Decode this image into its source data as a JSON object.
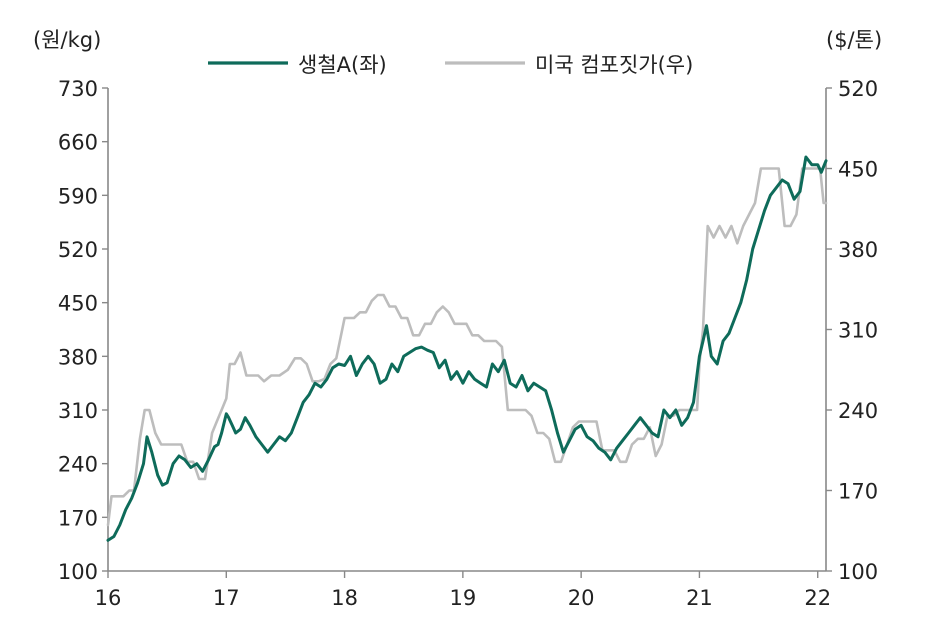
{
  "chart_data": {
    "type": "line",
    "left_axis_label": "(원/kg)",
    "right_axis_label": "($/톤)",
    "x_ticks": [
      "16",
      "17",
      "18",
      "19",
      "20",
      "21",
      "22"
    ],
    "x_range": [
      2016.0,
      2022.07
    ],
    "left_ticks": [
      "100",
      "170",
      "240",
      "310",
      "380",
      "450",
      "520",
      "590",
      "660",
      "730"
    ],
    "left_range": [
      100,
      730
    ],
    "right_ticks": [
      "100",
      "170",
      "240",
      "310",
      "380",
      "450",
      "520"
    ],
    "right_range": [
      100,
      520
    ],
    "legend": {
      "placement": "top-center"
    },
    "series": [
      {
        "name": "생철A(좌)",
        "axis": "left",
        "color": "#0e6b5a",
        "x": [
          2016.0,
          2016.05,
          2016.1,
          2016.15,
          2016.2,
          2016.25,
          2016.3,
          2016.33,
          2016.37,
          2016.42,
          2016.46,
          2016.5,
          2016.55,
          2016.6,
          2016.65,
          2016.7,
          2016.75,
          2016.8,
          2016.85,
          2016.9,
          2016.93,
          2016.96,
          2017.0,
          2017.02,
          2017.05,
          2017.08,
          2017.12,
          2017.16,
          2017.2,
          2017.25,
          2017.3,
          2017.35,
          2017.4,
          2017.45,
          2017.5,
          2017.55,
          2017.6,
          2017.65,
          2017.7,
          2017.75,
          2017.8,
          2017.85,
          2017.9,
          2017.95,
          2018.0,
          2018.05,
          2018.1,
          2018.15,
          2018.2,
          2018.25,
          2018.3,
          2018.35,
          2018.4,
          2018.45,
          2018.5,
          2018.55,
          2018.6,
          2018.65,
          2018.7,
          2018.75,
          2018.8,
          2018.85,
          2018.9,
          2018.95,
          2019.0,
          2019.05,
          2019.1,
          2019.15,
          2019.2,
          2019.25,
          2019.3,
          2019.35,
          2019.4,
          2019.45,
          2019.5,
          2019.55,
          2019.6,
          2019.65,
          2019.7,
          2019.75,
          2019.8,
          2019.85,
          2019.9,
          2019.95,
          2020.0,
          2020.05,
          2020.1,
          2020.15,
          2020.2,
          2020.25,
          2020.3,
          2020.35,
          2020.4,
          2020.45,
          2020.5,
          2020.55,
          2020.6,
          2020.65,
          2020.7,
          2020.75,
          2020.8,
          2020.85,
          2020.9,
          2020.95,
          2021.0,
          2021.03,
          2021.06,
          2021.1,
          2021.15,
          2021.2,
          2021.25,
          2021.3,
          2021.35,
          2021.4,
          2021.45,
          2021.5,
          2021.55,
          2021.6,
          2021.65,
          2021.7,
          2021.75,
          2021.8,
          2021.85,
          2021.9,
          2021.95,
          2022.0,
          2022.03,
          2022.07
        ],
        "values": [
          140,
          145,
          160,
          180,
          195,
          215,
          240,
          275,
          255,
          225,
          212,
          215,
          240,
          250,
          245,
          235,
          240,
          230,
          245,
          262,
          265,
          280,
          305,
          300,
          290,
          280,
          285,
          300,
          290,
          275,
          265,
          255,
          265,
          275,
          270,
          280,
          300,
          320,
          330,
          345,
          340,
          350,
          365,
          370,
          368,
          380,
          355,
          370,
          380,
          370,
          345,
          350,
          370,
          360,
          380,
          385,
          390,
          392,
          388,
          385,
          365,
          375,
          350,
          360,
          345,
          360,
          350,
          345,
          340,
          370,
          360,
          375,
          345,
          340,
          355,
          335,
          345,
          340,
          335,
          310,
          280,
          255,
          270,
          285,
          290,
          275,
          270,
          260,
          255,
          245,
          260,
          270,
          280,
          290,
          300,
          290,
          280,
          275,
          310,
          300,
          310,
          290,
          300,
          320,
          380,
          400,
          420,
          380,
          370,
          400,
          410,
          430,
          450,
          480,
          520,
          545,
          570,
          590,
          600,
          610,
          605,
          585,
          595,
          640,
          630,
          630,
          620,
          635
        ]
      },
      {
        "name": "미국 컴포짓가(우)",
        "axis": "right",
        "color": "#bdbdbd",
        "x": [
          2016.0,
          2016.03,
          2016.08,
          2016.13,
          2016.18,
          2016.22,
          2016.27,
          2016.31,
          2016.35,
          2016.4,
          2016.45,
          2016.5,
          2016.55,
          2016.62,
          2016.67,
          2016.72,
          2016.77,
          2016.82,
          2016.88,
          2016.92,
          2016.96,
          2017.0,
          2017.03,
          2017.07,
          2017.12,
          2017.17,
          2017.22,
          2017.27,
          2017.32,
          2017.38,
          2017.45,
          2017.52,
          2017.58,
          2017.63,
          2017.68,
          2017.73,
          2017.78,
          2017.83,
          2017.88,
          2017.93,
          2018.0,
          2018.03,
          2018.08,
          2018.13,
          2018.18,
          2018.23,
          2018.28,
          2018.33,
          2018.38,
          2018.43,
          2018.48,
          2018.53,
          2018.58,
          2018.63,
          2018.68,
          2018.73,
          2018.78,
          2018.83,
          2018.88,
          2018.93,
          2018.98,
          2019.03,
          2019.08,
          2019.13,
          2019.18,
          2019.23,
          2019.28,
          2019.33,
          2019.38,
          2019.43,
          2019.48,
          2019.53,
          2019.58,
          2019.63,
          2019.68,
          2019.73,
          2019.78,
          2019.83,
          2019.88,
          2019.93,
          2019.98,
          2020.03,
          2020.08,
          2020.13,
          2020.18,
          2020.23,
          2020.28,
          2020.33,
          2020.38,
          2020.43,
          2020.48,
          2020.53,
          2020.58,
          2020.63,
          2020.68,
          2020.73,
          2020.78,
          2020.83,
          2020.88,
          2020.93,
          2020.98,
          2021.0,
          2021.03,
          2021.07,
          2021.12,
          2021.17,
          2021.22,
          2021.27,
          2021.32,
          2021.37,
          2021.42,
          2021.47,
          2021.52,
          2021.57,
          2021.62,
          2021.67,
          2021.72,
          2021.77,
          2021.82,
          2021.87,
          2021.92,
          2021.97,
          2022.02,
          2022.05,
          2022.07
        ],
        "values": [
          140,
          165,
          165,
          165,
          170,
          170,
          215,
          240,
          240,
          220,
          210,
          210,
          210,
          210,
          195,
          195,
          180,
          180,
          220,
          230,
          240,
          250,
          280,
          280,
          290,
          270,
          270,
          270,
          265,
          270,
          270,
          275,
          285,
          285,
          280,
          265,
          265,
          267,
          280,
          285,
          320,
          320,
          320,
          325,
          325,
          335,
          340,
          340,
          330,
          330,
          320,
          320,
          305,
          305,
          315,
          315,
          325,
          330,
          325,
          315,
          315,
          315,
          305,
          305,
          300,
          300,
          300,
          295,
          240,
          240,
          240,
          240,
          235,
          220,
          220,
          215,
          195,
          195,
          210,
          225,
          230,
          230,
          230,
          230,
          205,
          205,
          205,
          195,
          195,
          210,
          215,
          215,
          225,
          200,
          210,
          235,
          235,
          240,
          240,
          240,
          240,
          280,
          310,
          400,
          390,
          400,
          390,
          400,
          385,
          400,
          410,
          420,
          450,
          450,
          450,
          450,
          400,
          400,
          410,
          450,
          450,
          450,
          450,
          420,
          420
        ]
      }
    ]
  }
}
